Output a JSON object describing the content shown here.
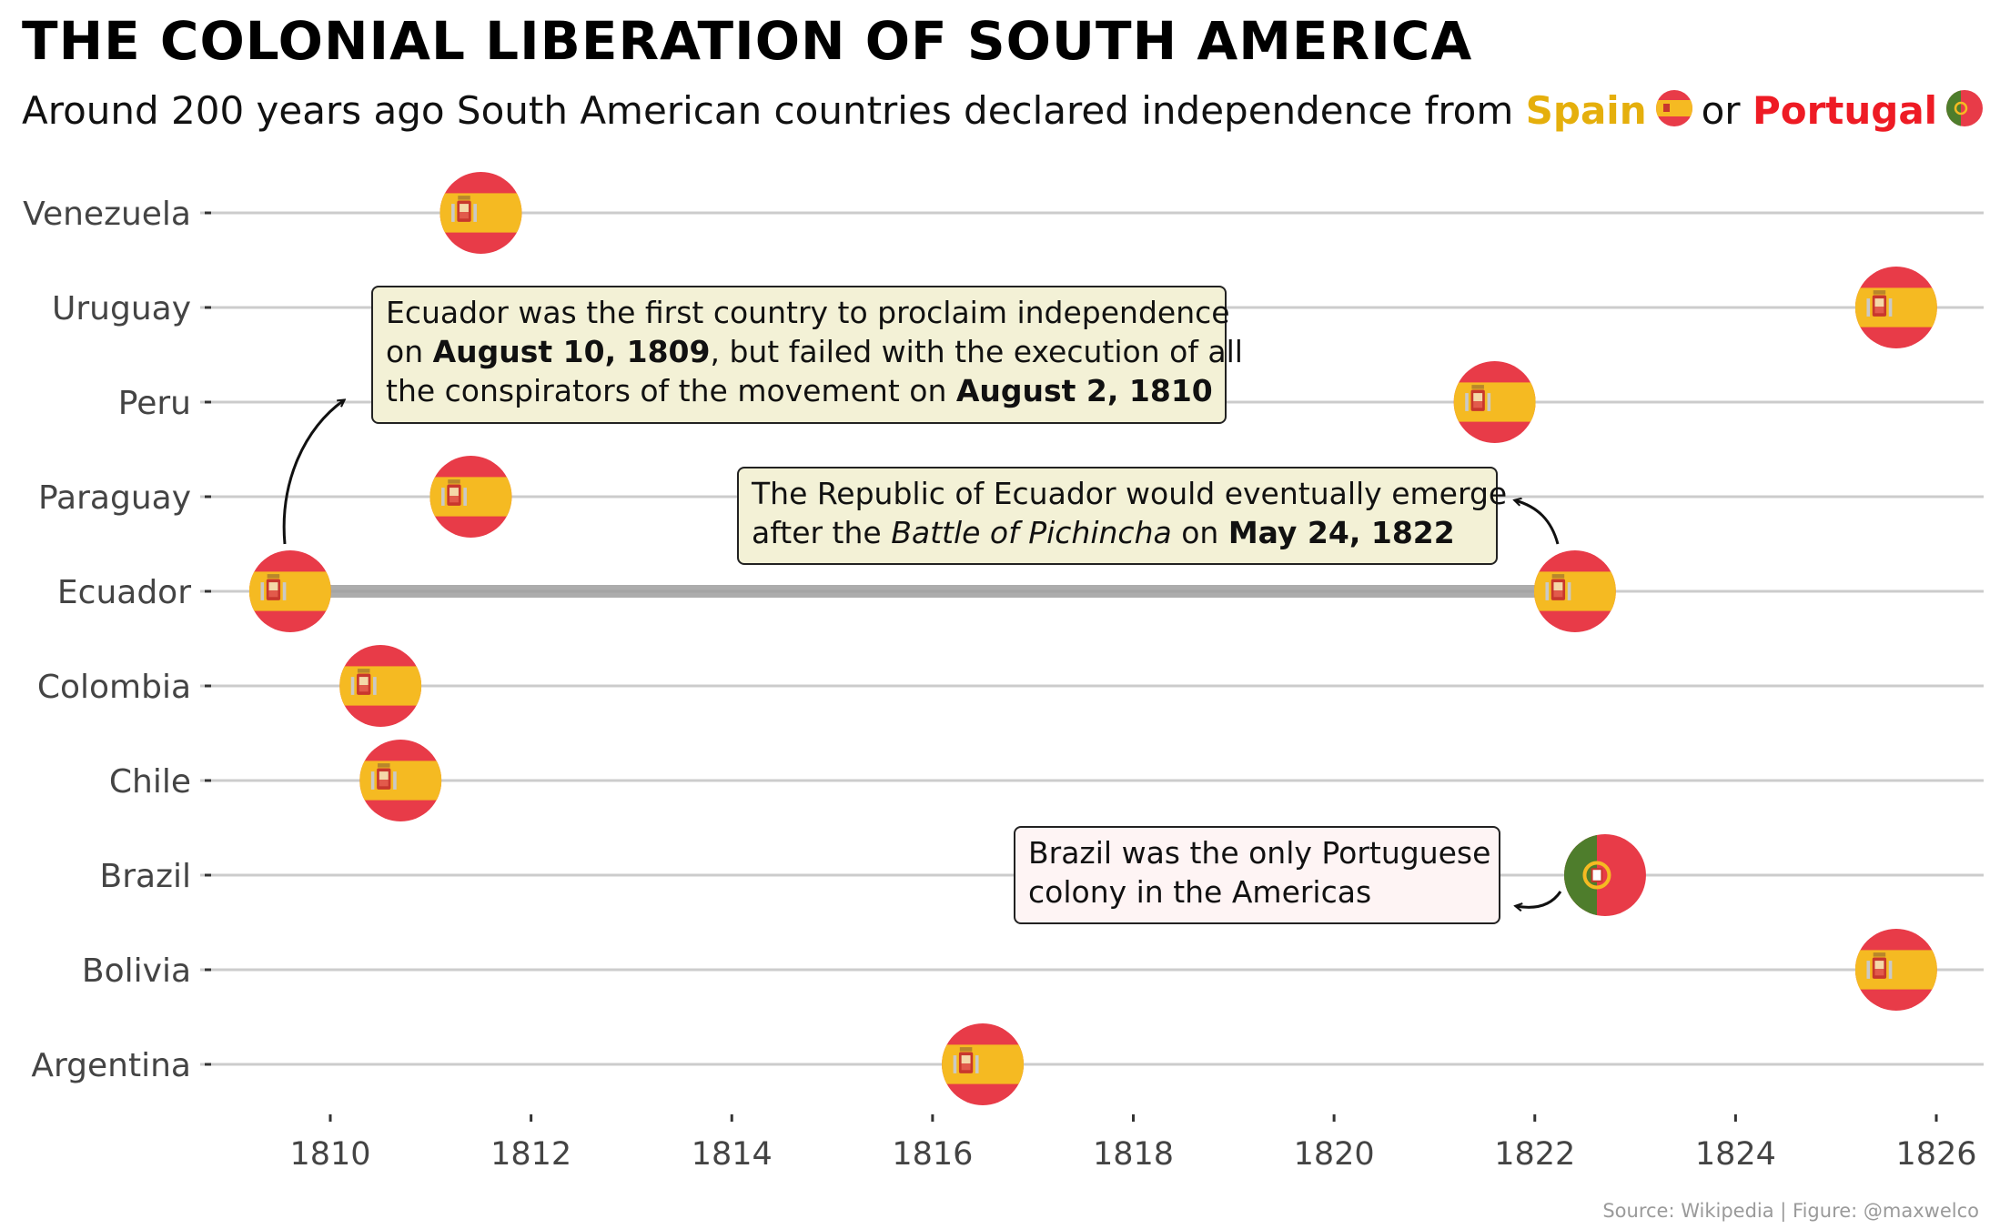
{
  "title": "THE COLONIAL LIBERATION OF SOUTH AMERICA",
  "subtitle": {
    "prefix": "Around 200 years ago South American countries declared independence from",
    "spain": "Spain",
    "or": "or",
    "portugal": "Portugal"
  },
  "colors": {
    "spain_red": "#E83B48",
    "spain_yellow": "#F5BA22",
    "portugal_green": "#4E7D2C",
    "portugal_red": "#E83B48",
    "gridline": "#cccccc",
    "segment": "#9e9e9e",
    "note_bg_spain": "#F3F1D6",
    "note_bg_portugal": "#FEF4F4"
  },
  "chart_data": {
    "type": "scatter",
    "x_ticks": [
      1810,
      1812,
      1814,
      1816,
      1818,
      1820,
      1822,
      1824,
      1826
    ],
    "xlim": [
      1808.7,
      1826.4
    ],
    "categories": [
      "Argentina",
      "Bolivia",
      "Brazil",
      "Chile",
      "Colombia",
      "Ecuador",
      "Paraguay",
      "Peru",
      "Uruguay",
      "Venezuela"
    ],
    "points": [
      {
        "country": "Venezuela",
        "year": 1811.5,
        "colonizer": "Spain"
      },
      {
        "country": "Uruguay",
        "year": 1825.6,
        "colonizer": "Spain"
      },
      {
        "country": "Peru",
        "year": 1821.6,
        "colonizer": "Spain"
      },
      {
        "country": "Paraguay",
        "year": 1811.4,
        "colonizer": "Spain"
      },
      {
        "country": "Ecuador",
        "year": 1809.6,
        "colonizer": "Spain"
      },
      {
        "country": "Ecuador",
        "year": 1822.4,
        "colonizer": "Spain"
      },
      {
        "country": "Colombia",
        "year": 1810.5,
        "colonizer": "Spain"
      },
      {
        "country": "Chile",
        "year": 1810.7,
        "colonizer": "Spain"
      },
      {
        "country": "Brazil",
        "year": 1822.7,
        "colonizer": "Portugal"
      },
      {
        "country": "Bolivia",
        "year": 1825.6,
        "colonizer": "Spain"
      },
      {
        "country": "Argentina",
        "year": 1816.5,
        "colonizer": "Spain"
      }
    ],
    "segments": [
      {
        "country": "Ecuador",
        "from": 1809.6,
        "to": 1822.4
      }
    ],
    "grid": "horizontal"
  },
  "annotations": {
    "note1": {
      "line1": "Ecuador was the first country to proclaim independence",
      "line2_pre": "on ",
      "line2_bold": "August 10, 1809",
      "line2_post": ", but failed with the execution of all",
      "line3_pre": "the conspirators of the movement on ",
      "line3_bold": "August 2, 1810"
    },
    "note2": {
      "line1": "The Republic of Ecuador would eventually emerge",
      "line2_pre": "after the ",
      "line2_italic": "Battle of Pichincha",
      "line2_mid": " on ",
      "line2_bold": "May 24, 1822"
    },
    "note3": {
      "line1": "Brazil was the only Portuguese",
      "line2": "colony in the Americas"
    }
  },
  "source": "Source: Wikipedia | Figure: @maxwelco"
}
